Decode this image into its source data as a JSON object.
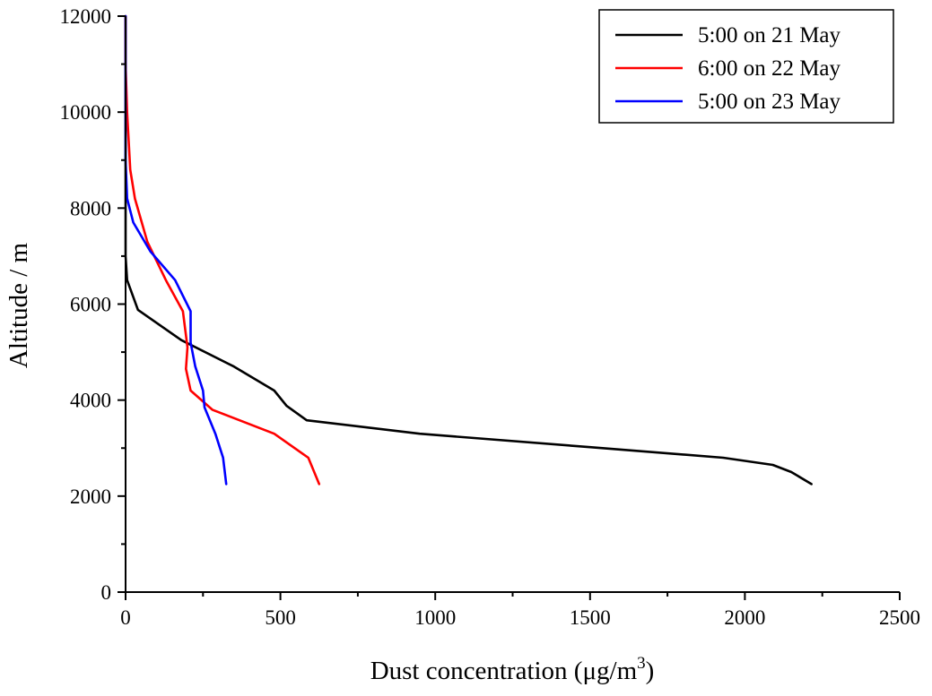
{
  "chart_data": {
    "type": "line",
    "title": "",
    "xlabel": "Dust concentration (μg/m",
    "xlabel_sup": "3",
    "xlabel_tail": ")",
    "ylabel": "Altitude / m",
    "xlim": [
      0,
      2500
    ],
    "ylim": [
      0,
      12000
    ],
    "x_ticks": [
      0,
      500,
      1000,
      1500,
      2000,
      2500
    ],
    "y_ticks": [
      0,
      2000,
      4000,
      6000,
      8000,
      10000,
      12000
    ],
    "x_tick_labels": [
      "0",
      "500",
      "1000",
      "1500",
      "2000",
      "2500"
    ],
    "y_tick_labels": [
      "0",
      "2000",
      "4000",
      "6000",
      "8000",
      "10000",
      "12000"
    ],
    "grid": false,
    "legend_position": "top-right",
    "series": [
      {
        "name": "5:00 on 21 May",
        "color": "#000000",
        "points": [
          [
            2215,
            2250
          ],
          [
            2150,
            2500
          ],
          [
            2090,
            2650
          ],
          [
            1930,
            2800
          ],
          [
            1500,
            3020
          ],
          [
            950,
            3300
          ],
          [
            585,
            3580
          ],
          [
            520,
            3880
          ],
          [
            480,
            4200
          ],
          [
            350,
            4700
          ],
          [
            180,
            5250
          ],
          [
            40,
            5880
          ],
          [
            5,
            6500
          ],
          [
            0,
            7000
          ],
          [
            0,
            8000
          ],
          [
            0,
            12000
          ]
        ]
      },
      {
        "name": "6:00 on 22 May",
        "color": "#ff0000",
        "points": [
          [
            625,
            2250
          ],
          [
            590,
            2800
          ],
          [
            480,
            3300
          ],
          [
            280,
            3800
          ],
          [
            210,
            4200
          ],
          [
            195,
            4650
          ],
          [
            200,
            5100
          ],
          [
            185,
            5850
          ],
          [
            130,
            6500
          ],
          [
            70,
            7300
          ],
          [
            30,
            8200
          ],
          [
            15,
            8800
          ],
          [
            5,
            10000
          ],
          [
            0,
            11000
          ],
          [
            0,
            12000
          ]
        ]
      },
      {
        "name": "5:00 on 23 May",
        "color": "#0000ff",
        "points": [
          [
            325,
            2250
          ],
          [
            315,
            2800
          ],
          [
            290,
            3300
          ],
          [
            255,
            3850
          ],
          [
            250,
            4200
          ],
          [
            225,
            4700
          ],
          [
            210,
            5200
          ],
          [
            210,
            5850
          ],
          [
            160,
            6500
          ],
          [
            80,
            7100
          ],
          [
            25,
            7700
          ],
          [
            5,
            8200
          ],
          [
            0,
            9000
          ],
          [
            0,
            12000
          ]
        ]
      }
    ]
  }
}
